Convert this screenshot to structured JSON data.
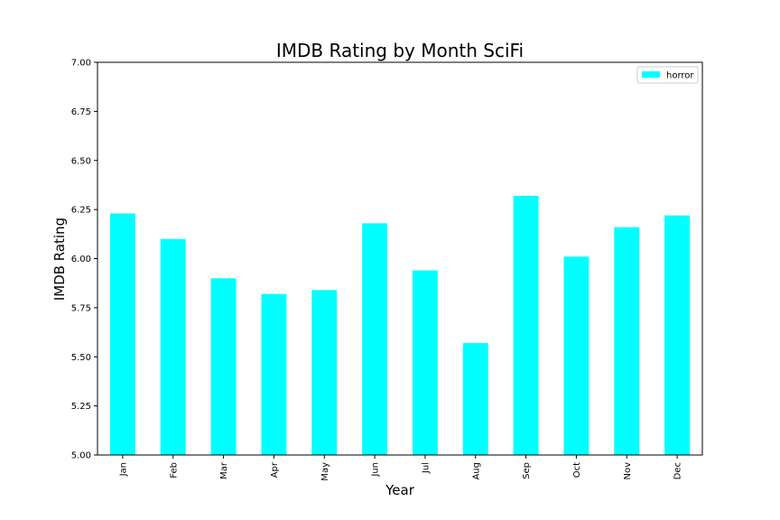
{
  "chart_data": {
    "type": "bar",
    "title": "IMDB Rating by Month SciFi",
    "xlabel": "Year",
    "ylabel": "IMDB Rating",
    "categories": [
      "Jan",
      "Feb",
      "Mar",
      "Apr",
      "May",
      "Jun",
      "Jul",
      "Aug",
      "Sep",
      "Oct",
      "Nov",
      "Dec"
    ],
    "series": [
      {
        "name": "horror",
        "color": "#00ffff",
        "values": [
          6.23,
          6.1,
          5.9,
          5.82,
          5.84,
          6.18,
          5.94,
          5.57,
          6.32,
          6.01,
          6.16,
          6.22
        ]
      }
    ],
    "ylim": [
      5.0,
      7.0
    ],
    "yticks": [
      5.0,
      5.25,
      5.5,
      5.75,
      6.0,
      6.25,
      6.5,
      6.75,
      7.0
    ],
    "grid": false,
    "legend_position": "top-right"
  }
}
